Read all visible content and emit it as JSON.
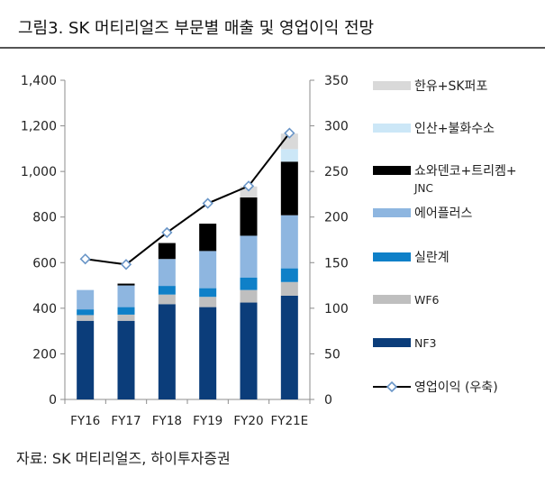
{
  "figure": {
    "title": "그림3. SK 머티리얼즈 부문별 매출 및 영업이익 전망",
    "source": "자료: SK 머티리얼즈, 하이투자증권"
  },
  "chart_data": {
    "type": "bar",
    "stacked": true,
    "categories": [
      "FY16",
      "FY17",
      "FY18",
      "FY19",
      "FY20",
      "FY21E"
    ],
    "left_axis": {
      "ylim": [
        0,
        1400
      ],
      "ticks": [
        0,
        200,
        400,
        600,
        800,
        1000,
        1200,
        1400
      ],
      "tick_labels": [
        "0",
        "200",
        "400",
        "600",
        "800",
        "1,000",
        "1,200",
        "1,400"
      ]
    },
    "right_axis": {
      "ylim": [
        0,
        350
      ],
      "ticks": [
        0,
        50,
        100,
        150,
        200,
        250,
        300,
        350
      ],
      "tick_labels": [
        "0",
        "50",
        "100",
        "150",
        "200",
        "250",
        "300",
        "350"
      ]
    },
    "series": [
      {
        "name": "NF3",
        "color": "#0b3d7a",
        "values": [
          345,
          345,
          418,
          405,
          425,
          455
        ]
      },
      {
        "name": "WF6",
        "color": "#bfbfbf",
        "values": [
          25,
          27,
          42,
          45,
          55,
          60
        ]
      },
      {
        "name": "실란계",
        "color": "#0f80c8",
        "values": [
          25,
          33,
          38,
          38,
          55,
          60
        ]
      },
      {
        "name": "에어플러스",
        "color": "#8eb6e0",
        "values": [
          85,
          95,
          118,
          163,
          183,
          233
        ]
      },
      {
        "name": "쇼와덴코+트리켐+JNC",
        "color": "#000000",
        "values": [
          0,
          8,
          70,
          120,
          168,
          235
        ]
      },
      {
        "name": "인산+불화수소",
        "color": "#cce7f7",
        "values": [
          0,
          0,
          0,
          0,
          0,
          55
        ]
      },
      {
        "name": "한유+SK퍼포",
        "color": "#d9d9d9",
        "values": [
          0,
          0,
          0,
          0,
          48,
          68
        ]
      }
    ],
    "line": {
      "name": "영업이익 (우축)",
      "axis": "right",
      "color": "#000000",
      "marker_color": "#6a96c8",
      "values": [
        154,
        148,
        183,
        215,
        234,
        292
      ]
    },
    "legend_order": [
      "한유+SK퍼포",
      "인산+불화수소",
      "쇼와덴코+트리켐+JNC",
      "에어플러스",
      "실란계",
      "WF6",
      "NF3",
      "영업이익 (우축)"
    ],
    "legend_labels": {
      "한유+SK퍼포": "한유+SK퍼포",
      "인산+불화수소": "인산+불화수소",
      "쇼와덴코+트리켐+JNC": [
        "쇼와덴코+트리켐+",
        "JNC"
      ],
      "에어플러스": "에어플러스",
      "실란계": "실란계",
      "WF6": "WF6",
      "NF3": "NF3",
      "영업이익 (우축)": "영업이익 (우축)"
    },
    "legend_placement": "right",
    "grid": false
  }
}
